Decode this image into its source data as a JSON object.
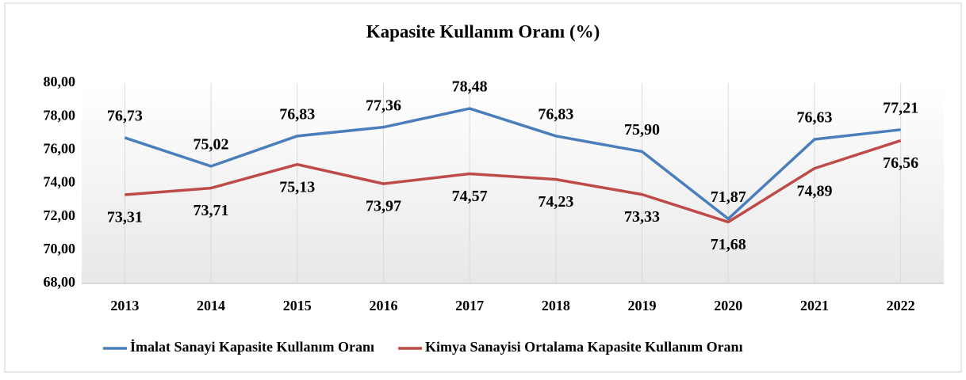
{
  "chart_data": {
    "type": "line",
    "title": "Kapasite Kullanım Oranı (%)",
    "categories": [
      "2013",
      "2014",
      "2015",
      "2016",
      "2017",
      "2018",
      "2019",
      "2020",
      "2021",
      "2022"
    ],
    "series": [
      {
        "name": "İmalat Sanayi Kapasite Kullanım Oranı",
        "color": "#4a7ebb",
        "values": [
          76.73,
          75.02,
          76.83,
          77.36,
          78.48,
          76.83,
          75.9,
          71.87,
          76.63,
          77.21
        ],
        "value_labels": [
          "76,73",
          "75,02",
          "76,83",
          "77,36",
          "78,48",
          "76,83",
          "75,90",
          "71,87",
          "76,63",
          "77,21"
        ]
      },
      {
        "name": "Kimya Sanayisi Ortalama Kapasite Kullanım Oranı",
        "color": "#be4b48",
        "values": [
          73.31,
          73.71,
          75.13,
          73.97,
          74.57,
          74.23,
          73.33,
          71.68,
          74.89,
          76.56
        ],
        "value_labels": [
          "73,31",
          "73,71",
          "75,13",
          "73,97",
          "74,57",
          "74,23",
          "73,33",
          "71,68",
          "74,89",
          "76,56"
        ]
      }
    ],
    "ylim": [
      68,
      80
    ],
    "yticks": [
      {
        "value": 68,
        "label": "68,00"
      },
      {
        "value": 70,
        "label": "70,00"
      },
      {
        "value": 72,
        "label": "72,00"
      },
      {
        "value": 74,
        "label": "74,00"
      },
      {
        "value": 76,
        "label": "76,00"
      },
      {
        "value": 78,
        "label": "78,00"
      },
      {
        "value": 80,
        "label": "80,00"
      }
    ],
    "grid": "vertical",
    "legend": "bottom"
  }
}
